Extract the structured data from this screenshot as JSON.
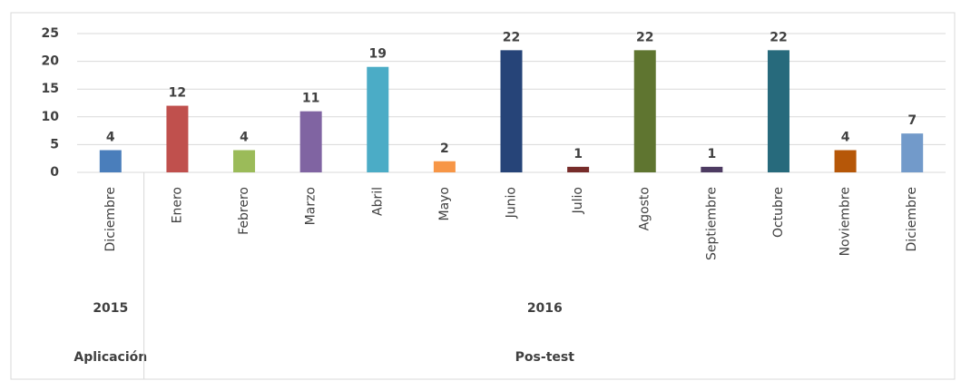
{
  "chart_data": {
    "type": "bar",
    "ylim": [
      0,
      25
    ],
    "yticks": [
      0,
      5,
      10,
      15,
      20,
      25
    ],
    "grid": true,
    "groups": [
      {
        "label": "Aplicación",
        "years": [
          {
            "label": "2015",
            "categories": [
              "Diciembre"
            ],
            "values": [
              4
            ],
            "colors": [
              "#4a7ebb"
            ]
          }
        ]
      },
      {
        "label": "Pos-test",
        "years": [
          {
            "label": "2016",
            "categories": [
              "Enero",
              "Febrero",
              "Marzo",
              "Abril",
              "Mayo",
              "Junio",
              "Julio",
              "Agosto",
              "Septiembre",
              "Octubre",
              "Noviembre",
              "Diciembre"
            ],
            "values": [
              12,
              4,
              11,
              19,
              2,
              22,
              1,
              22,
              1,
              22,
              4,
              7
            ],
            "colors": [
              "#c0504d",
              "#9bbb59",
              "#8064a2",
              "#4bacc6",
              "#f79646",
              "#264478",
              "#772c2a",
              "#5f7530",
              "#4d3b62",
              "#276a7c",
              "#b65708",
              "#729aca"
            ]
          }
        ]
      }
    ]
  }
}
